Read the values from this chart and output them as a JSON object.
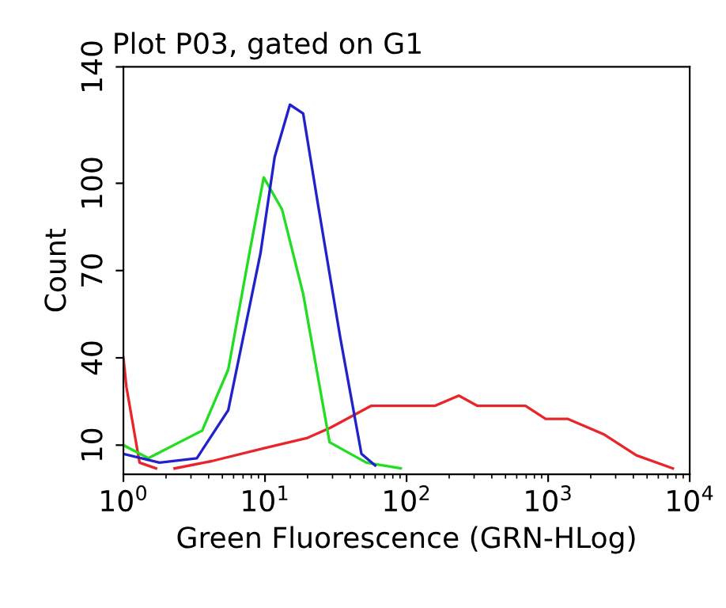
{
  "chart_data": {
    "type": "line",
    "title": "Plot P03, gated on G1",
    "xlabel": "Green Fluorescence (GRN-HLog)",
    "ylabel": "Count",
    "log": "x",
    "xlim": [
      1,
      10000
    ],
    "xticks": [
      {
        "value": 1,
        "label": "10$^{0}$"
      },
      {
        "value": 10,
        "label": "10$^{1}$"
      },
      {
        "value": 100,
        "label": "10$^{2}$"
      },
      {
        "value": 1000,
        "label": "10$^{3}$"
      },
      {
        "value": 10000,
        "label": "10$^{4}$"
      }
    ],
    "ylim": [
      0,
      140
    ],
    "yticks": [
      10,
      40,
      70,
      100,
      140
    ],
    "grid": false,
    "legend": false,
    "marker": "none",
    "line_style": "solid",
    "series": [
      {
        "color": "#e8252a",
        "x": [
          1,
          1.05,
          1.3,
          1.7,
          1.85,
          2.3,
          4.2,
          10,
          20,
          29,
          56,
          158,
          234,
          317,
          692,
          960,
          1380,
          2500,
          4200,
          7600
        ],
        "values": [
          40,
          30,
          4,
          2,
          null,
          2,
          4.5,
          9,
          12.5,
          16,
          23.5,
          23.5,
          27,
          23.5,
          23.5,
          19,
          19,
          13.6,
          6.5,
          2
        ]
      },
      {
        "color": "#22dd22",
        "x": [
          1,
          1.5,
          3.6,
          5.5,
          7.9,
          9.8,
          13.2,
          18.6,
          28.6,
          52,
          91
        ],
        "values": [
          10,
          5.5,
          15,
          36,
          78,
          102,
          91,
          62,
          11,
          4,
          2
        ]
      },
      {
        "color": "#2222cc",
        "x": [
          1,
          1.8,
          3.3,
          5.5,
          9.3,
          11.7,
          15,
          18.6,
          24,
          34,
          48,
          60
        ],
        "values": [
          7,
          4,
          5.5,
          22,
          76,
          109,
          127,
          124,
          91,
          47,
          7,
          3
        ]
      }
    ]
  }
}
